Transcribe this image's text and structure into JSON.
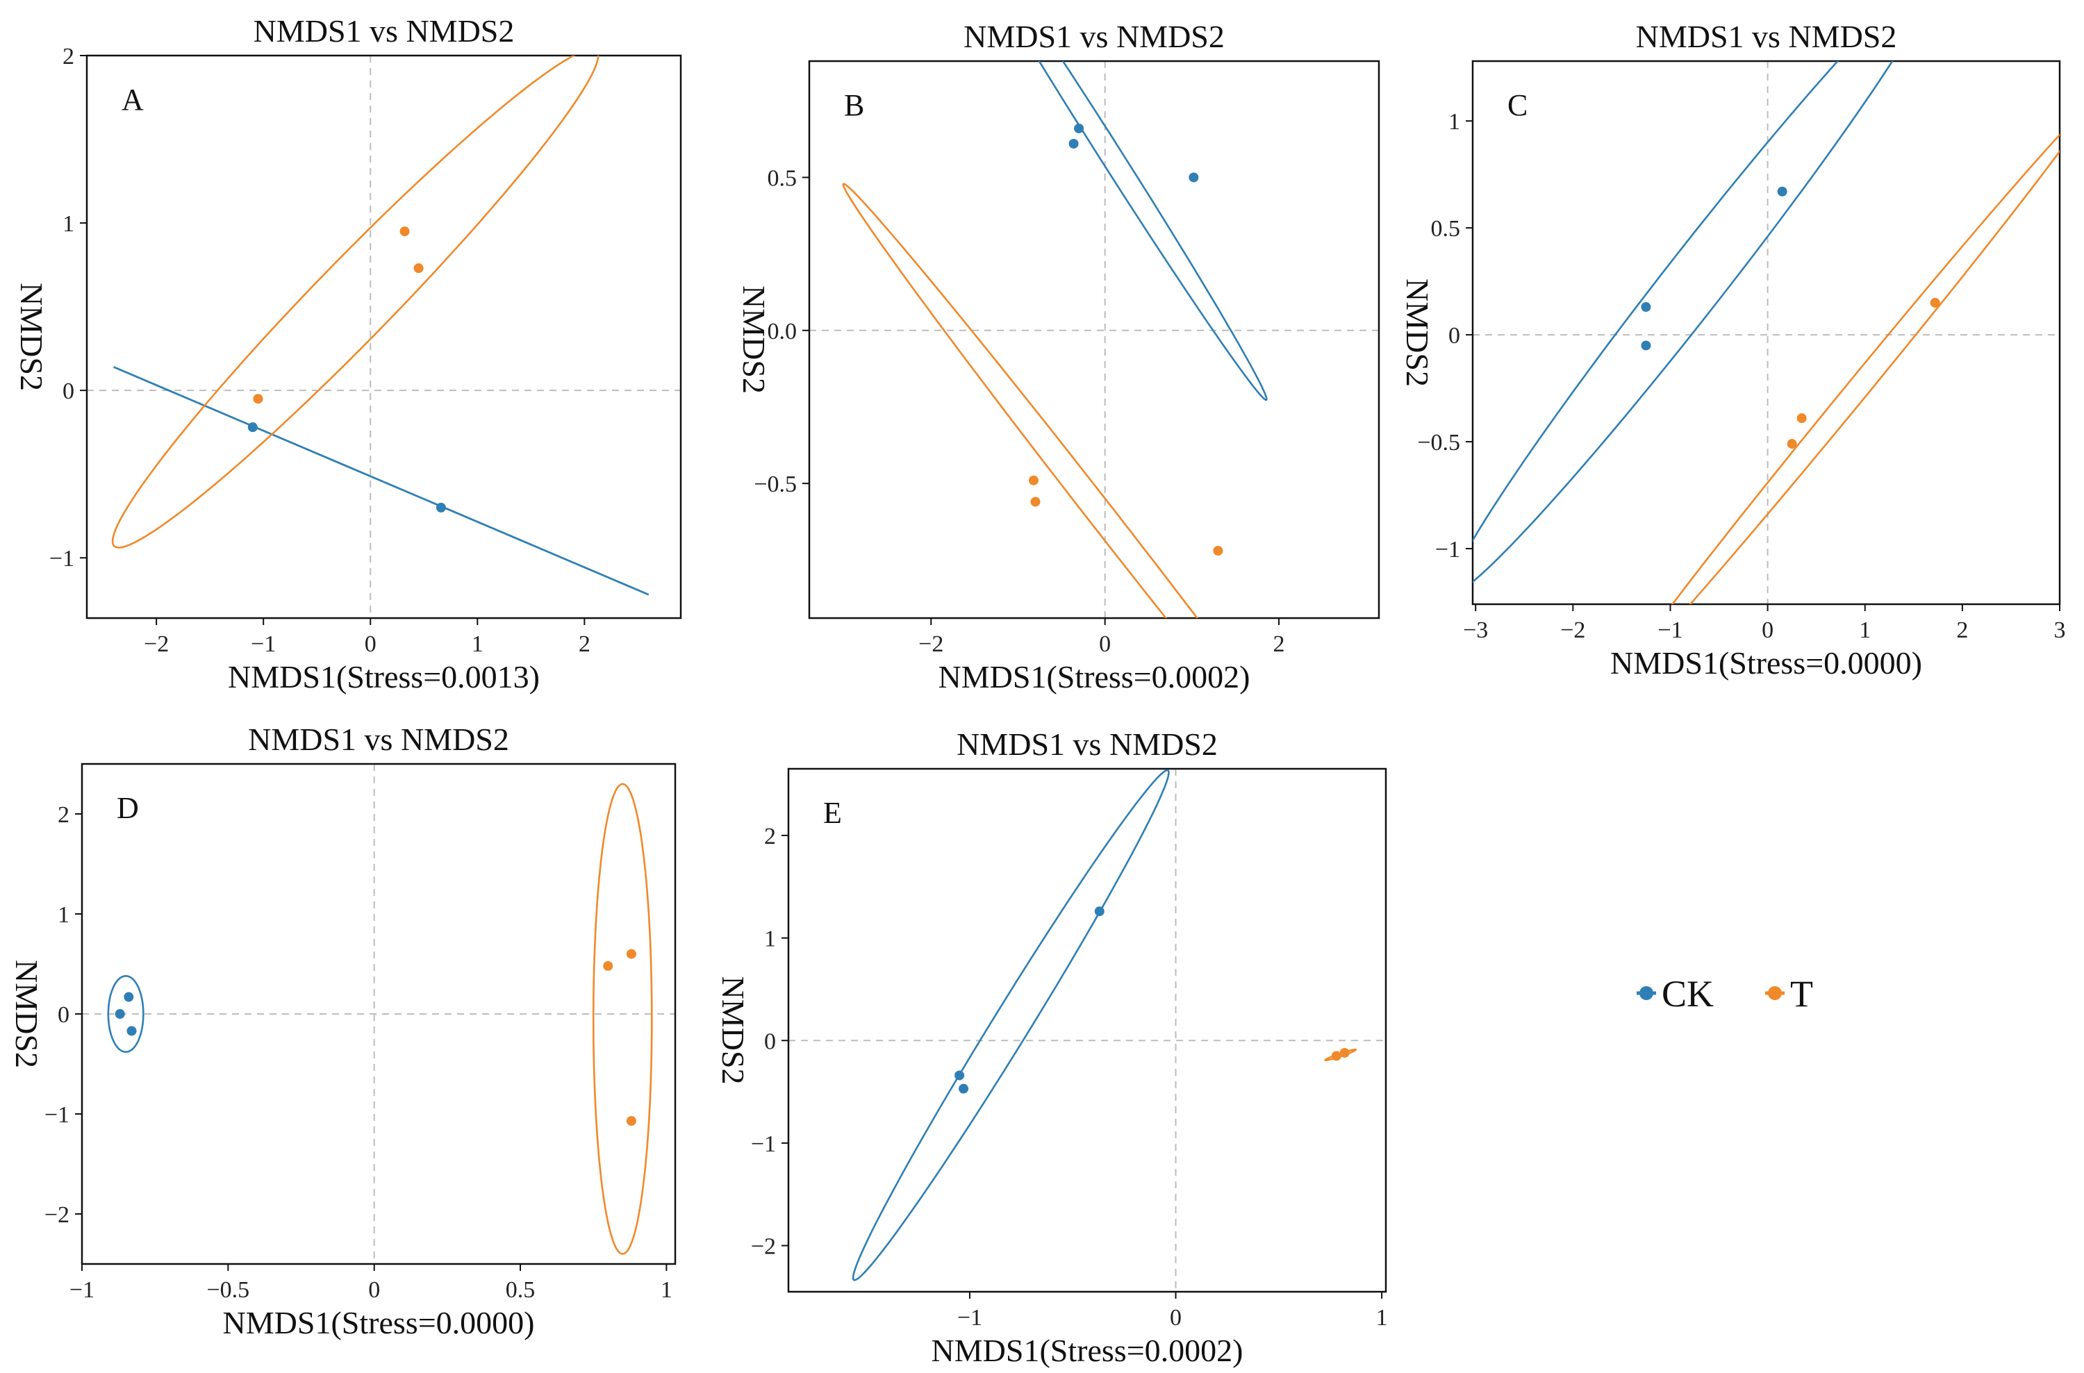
{
  "colors": {
    "CK": "#2f7fb5",
    "T": "#f0892a"
  },
  "legend": [
    {
      "name": "CK",
      "color": "#2f7fb5"
    },
    {
      "name": "T",
      "color": "#f0892a"
    }
  ],
  "chart_data": [
    {
      "type": "scatter",
      "panel": "A",
      "title": "NMDS1 vs NMDS2",
      "xlabel": "NMDS1(Stress=0.0013)",
      "ylabel": "NMDS2",
      "xlim": [
        -2.65,
        2.9
      ],
      "ylim": [
        -1.36,
        2.0
      ],
      "xticks": [
        -2,
        -1,
        0,
        1,
        2
      ],
      "yticks": [
        -1,
        0,
        1,
        2
      ],
      "series": [
        {
          "name": "CK",
          "points": [
            [
              -1.1,
              -0.22
            ],
            [
              0.66,
              -0.7
            ]
          ],
          "line": [
            [
              -2.4,
              0.14
            ],
            [
              2.6,
              -1.22
            ]
          ]
        },
        {
          "name": "T",
          "points": [
            [
              0.32,
              0.95
            ],
            [
              0.45,
              0.73
            ],
            [
              -1.05,
              -0.05
            ]
          ],
          "ellipse": {
            "cx": -0.14,
            "cy": 0.55,
            "a": 2.7,
            "b": 0.28,
            "angle_deg": 33
          }
        }
      ]
    },
    {
      "type": "scatter",
      "panel": "B",
      "title": "NMDS1 vs NMDS2",
      "xlabel": "NMDS1(Stress=0.0002)",
      "ylabel": "NMDS2",
      "xlim": [
        -3.4,
        3.15
      ],
      "ylim": [
        -0.94,
        0.88
      ],
      "xticks": [
        -2,
        0,
        2
      ],
      "yticks": [
        0.5,
        0.0,
        -0.5
      ],
      "series": [
        {
          "name": "CK",
          "points": [
            [
              -0.36,
              0.61
            ],
            [
              -0.3,
              0.66
            ],
            [
              1.02,
              0.5
            ]
          ],
          "ellipse": {
            "cx": 0.05,
            "cy": 0.58,
            "a": 1.98,
            "b": 0.06,
            "angle_deg": -24
          }
        },
        {
          "name": "T",
          "points": [
            [
              -0.82,
              -0.49
            ],
            [
              -0.8,
              -0.56
            ],
            [
              1.3,
              -0.72
            ]
          ],
          "ellipse": {
            "cx": -0.05,
            "cy": -0.6,
            "a": 3.15,
            "b": 0.065,
            "angle_deg": -20
          }
        }
      ]
    },
    {
      "type": "scatter",
      "panel": "C",
      "title": "NMDS1 vs NMDS2",
      "xlabel": "NMDS1(Stress=0.0000)",
      "ylabel": "NMDS2",
      "xlim": [
        -3.03,
        3.0
      ],
      "ylim": [
        -1.26,
        1.28
      ],
      "xticks": [
        -3,
        -2,
        -1,
        0,
        1,
        2,
        3
      ],
      "yticks": [
        1,
        0.5,
        0,
        -0.5,
        -1
      ],
      "series": [
        {
          "name": "CK",
          "points": [
            [
              0.15,
              0.67
            ],
            [
              -1.25,
              0.13
            ],
            [
              -1.25,
              -0.05
            ]
          ],
          "ellipse": {
            "cx": -0.75,
            "cy": 0.25,
            "a": 2.9,
            "b": 0.2,
            "angle_deg": 30
          }
        },
        {
          "name": "T",
          "points": [
            [
              1.72,
              0.15
            ],
            [
              0.35,
              -0.39
            ],
            [
              0.25,
              -0.51
            ]
          ],
          "ellipse": {
            "cx": 0.93,
            "cy": -0.25,
            "a": 2.7,
            "b": 0.07,
            "angle_deg": 29
          }
        }
      ]
    },
    {
      "type": "scatter",
      "panel": "D",
      "title": "NMDS1 vs NMDS2",
      "xlabel": "NMDS1(Stress=0.0000)",
      "ylabel": "NMDS2",
      "xlim": [
        -1.0,
        1.03
      ],
      "ylim": [
        -2.5,
        2.5
      ],
      "xticks": [
        -1,
        -0.5,
        0,
        0.5,
        1
      ],
      "yticks": [
        2,
        1,
        0,
        -1,
        -2
      ],
      "series": [
        {
          "name": "CK",
          "points": [
            [
              -0.87,
              0.0
            ],
            [
              -0.84,
              0.17
            ],
            [
              -0.83,
              -0.17
            ]
          ],
          "ellipse": {
            "cx": -0.85,
            "cy": 0.0,
            "a": 0.38,
            "b": 0.06,
            "angle_deg": 90
          }
        },
        {
          "name": "T",
          "points": [
            [
              0.8,
              0.48
            ],
            [
              0.88,
              0.6
            ],
            [
              0.88,
              -1.07
            ]
          ],
          "ellipse": {
            "cx": 0.85,
            "cy": -0.05,
            "a": 2.35,
            "b": 0.1,
            "angle_deg": 90
          }
        }
      ]
    },
    {
      "type": "scatter",
      "panel": "E",
      "title": "NMDS1 vs NMDS2",
      "xlabel": "NMDS1(Stress=0.0002)",
      "ylabel": "NMDS2",
      "xlim": [
        -1.88,
        1.02
      ],
      "ylim": [
        -2.45,
        2.65
      ],
      "xticks": [
        -1,
        0,
        1
      ],
      "yticks": [
        2,
        1,
        0,
        -1,
        -2
      ],
      "series": [
        {
          "name": "CK",
          "points": [
            [
              -0.37,
              1.26
            ],
            [
              -1.05,
              -0.34
            ],
            [
              -1.03,
              -0.47
            ]
          ],
          "ellipse": {
            "cx": -0.8,
            "cy": 0.15,
            "a": 2.6,
            "b": 0.1,
            "angle_deg": 73
          }
        },
        {
          "name": "T",
          "points": [
            [
              0.78,
              -0.15
            ],
            [
              0.82,
              -0.12
            ]
          ],
          "ellipse": {
            "cx": 0.8,
            "cy": -0.14,
            "a": 0.09,
            "b": 0.012,
            "angle_deg": 35
          }
        }
      ]
    }
  ]
}
